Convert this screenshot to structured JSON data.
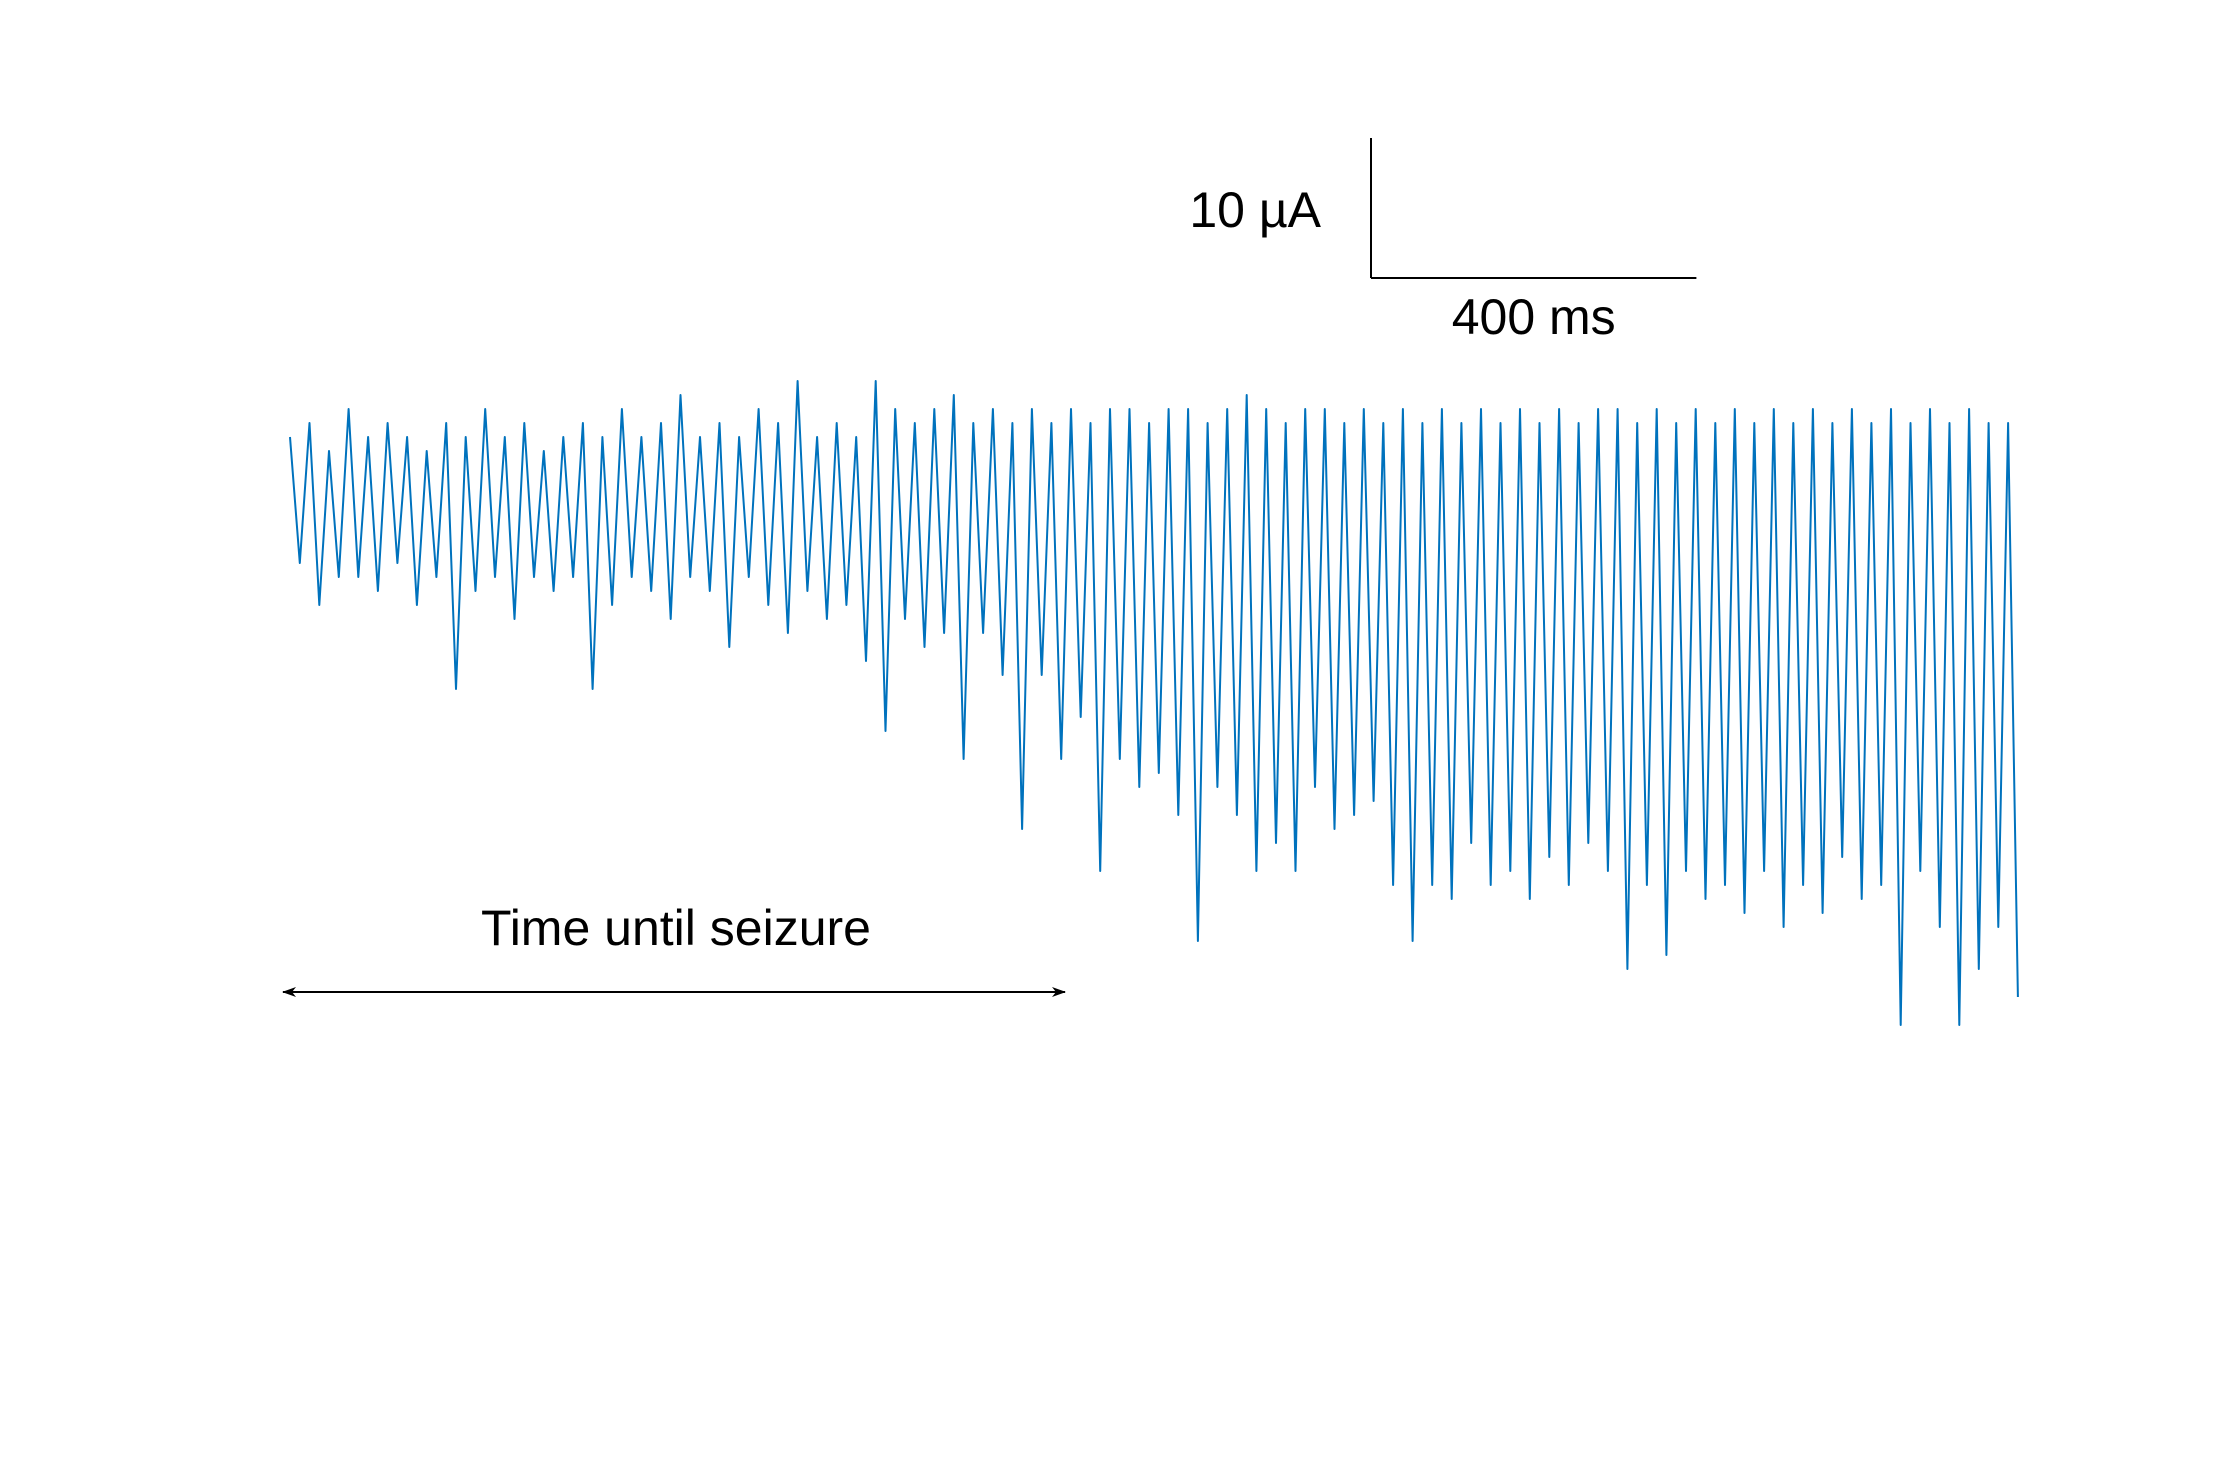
{
  "chart_data": {
    "type": "line",
    "color": "#0072BD",
    "x": [
      0,
      12,
      24,
      36,
      48,
      60,
      72,
      84,
      96,
      108,
      120,
      132,
      144,
      156,
      168,
      180,
      192,
      204,
      216,
      228,
      240,
      252,
      264,
      276,
      288,
      300,
      312,
      324,
      336,
      348,
      360,
      372,
      384,
      396,
      408,
      420,
      432,
      444,
      456,
      468,
      480,
      492,
      504,
      516,
      528,
      540,
      552,
      564,
      576,
      588,
      600,
      612,
      624,
      636,
      648,
      660,
      672,
      684,
      696,
      708,
      720,
      732,
      744,
      756,
      768,
      780,
      792,
      804,
      816,
      828,
      840,
      852,
      864,
      876,
      888,
      900,
      912,
      924,
      936,
      948,
      960,
      972,
      984,
      996,
      1008,
      1020,
      1032,
      1044,
      1056,
      1068,
      1080,
      1092,
      1104,
      1116,
      1128,
      1140,
      1152,
      1164,
      1176,
      1188,
      1200,
      1212,
      1224,
      1236,
      1248,
      1260,
      1272,
      1284,
      1296,
      1308,
      1320,
      1332,
      1344,
      1356,
      1368,
      1380,
      1392,
      1404,
      1416,
      1428,
      1440,
      1452,
      1464,
      1476,
      1488,
      1500,
      1512,
      1524,
      1536,
      1548,
      1560,
      1572,
      1584,
      1596,
      1608,
      1620,
      1632,
      1644,
      1656,
      1668,
      1680,
      1692,
      1704,
      1716,
      1728,
      1740,
      1752,
      1764,
      1776,
      1788,
      1800,
      1812,
      1824,
      1836,
      1848,
      1860,
      1872,
      1884,
      1896,
      1908,
      1920,
      1932,
      1944,
      1956,
      1968,
      1980,
      1992,
      2004,
      2016,
      2028,
      2040,
      2052,
      2064,
      2076,
      2088,
      2100,
      2112,
      2124
    ],
    "values": [
      5,
      -4,
      6,
      -7,
      4,
      -5,
      7,
      -5,
      5,
      -6,
      6,
      -4,
      5,
      -7,
      4,
      -5,
      6,
      -13,
      5,
      -6,
      7,
      -5,
      5,
      -8,
      6,
      -5,
      4,
      -6,
      5,
      -5,
      6,
      -13,
      5,
      -7,
      7,
      -5,
      5,
      -6,
      6,
      -8,
      8,
      -5,
      5,
      -6,
      6,
      -10,
      5,
      -5,
      7,
      -7,
      6,
      -9,
      9,
      -6,
      5,
      -8,
      6,
      -7,
      5,
      -11,
      9,
      -16,
      7,
      -8,
      6,
      -10,
      7,
      -9,
      8,
      -18,
      6,
      -9,
      7,
      -12,
      6,
      -23,
      7,
      -12,
      6,
      -18,
      7,
      -15,
      6,
      -26,
      7,
      -18,
      7,
      -20,
      6,
      -19,
      7,
      -22,
      7,
      -31,
      6,
      -20,
      7,
      -22,
      8,
      -26,
      7,
      -24,
      6,
      -26,
      7,
      -20,
      7,
      -23,
      6,
      -22,
      7,
      -21,
      6,
      -27,
      7,
      -31,
      6,
      -27,
      7,
      -28,
      6,
      -24,
      7,
      -27,
      6,
      -26,
      7,
      -28,
      6,
      -25,
      7,
      -27,
      6,
      -24,
      7,
      -26,
      7,
      -33,
      6,
      -27,
      7,
      -32,
      6,
      -26,
      7,
      -28,
      6,
      -27,
      7,
      -29,
      6,
      -26,
      7,
      -30,
      6,
      -27,
      7,
      -29,
      6,
      -25,
      7,
      -28,
      6,
      -27,
      7,
      -37,
      6,
      -26,
      7,
      -30,
      6,
      -37,
      7,
      -33,
      6,
      -30,
      6,
      -35
    ],
    "scale_bars": [
      {
        "value": 10,
        "label": "10 µA"
      },
      {
        "value": 400,
        "label": "400 ms"
      }
    ],
    "annotations": [
      "Time until seizure"
    ]
  }
}
